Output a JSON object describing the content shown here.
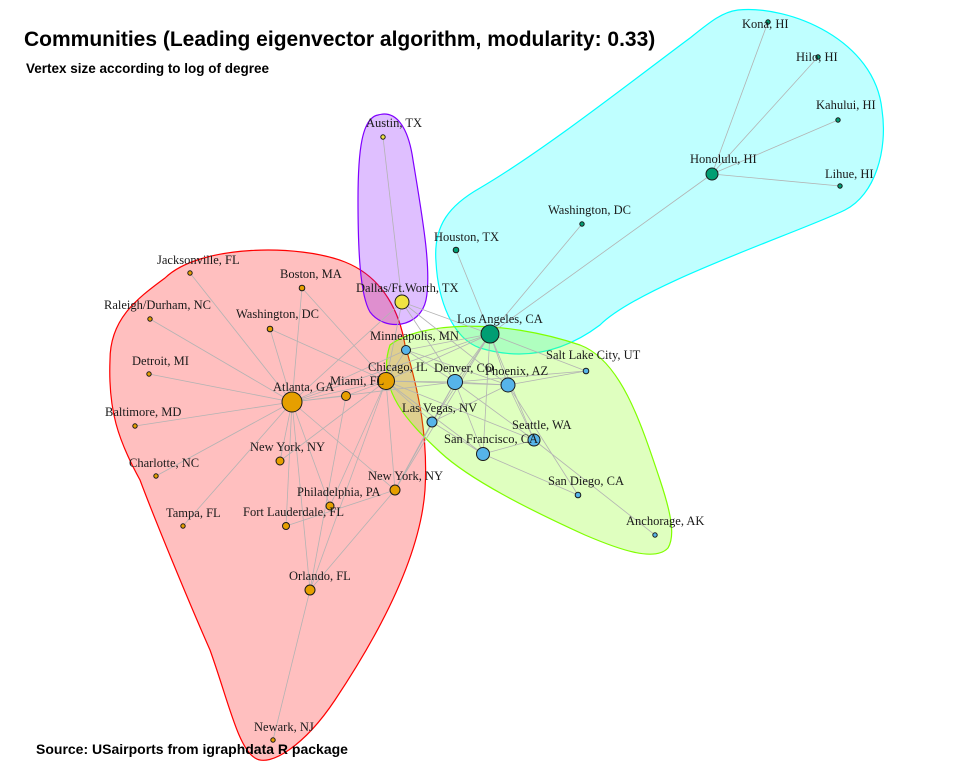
{
  "title": "Communities (Leading eigenvector algorithm, modularity: 0.33)",
  "subtitle": "Vertex size according to log of degree",
  "source": "Source: USairports from igraphdata R package",
  "colors": {
    "background": "#ffffff",
    "edge": "#b3b3b3",
    "node_stroke": "#1a1a1a"
  },
  "communities": [
    {
      "id": "red",
      "fill": "#ff0000",
      "fill_opacity": 0.25,
      "stroke": "#ff0000"
    },
    {
      "id": "purple",
      "fill": "#8000ff",
      "fill_opacity": 0.25,
      "stroke": "#8000ff"
    },
    {
      "id": "cyan",
      "fill": "#00ffff",
      "fill_opacity": 0.25,
      "stroke": "#00ffff"
    },
    {
      "id": "green",
      "fill": "#80ff00",
      "fill_opacity": 0.25,
      "stroke": "#80ff00"
    }
  ],
  "community_colors": {
    "red": "#e69f00",
    "purple": "#f0e442",
    "cyan": "#009e73",
    "green": "#56b4e9"
  },
  "nodes": [
    {
      "id": "kona",
      "label": "Kona, HI",
      "community": "cyan"
    },
    {
      "id": "hilo",
      "label": "Hilo, HI",
      "community": "cyan"
    },
    {
      "id": "kahului",
      "label": "Kahului, HI",
      "community": "cyan"
    },
    {
      "id": "honolulu",
      "label": "Honolulu, HI",
      "community": "cyan"
    },
    {
      "id": "lihue",
      "label": "Lihue, HI",
      "community": "cyan"
    },
    {
      "id": "washington_dc2",
      "label": "Washington, DC",
      "community": "cyan"
    },
    {
      "id": "houston",
      "label": "Houston, TX",
      "community": "cyan"
    },
    {
      "id": "los_angeles",
      "label": "Los Angeles, CA",
      "community": "cyan"
    },
    {
      "id": "austin",
      "label": "Austin, TX",
      "community": "purple"
    },
    {
      "id": "dallas",
      "label": "Dallas/Ft.Worth, TX",
      "community": "purple"
    },
    {
      "id": "jacksonville",
      "label": "Jacksonville, FL",
      "community": "red"
    },
    {
      "id": "boston",
      "label": "Boston, MA",
      "community": "red"
    },
    {
      "id": "raleigh",
      "label": "Raleigh/Durham, NC",
      "community": "red"
    },
    {
      "id": "washington_dc1",
      "label": "Washington, DC",
      "community": "red"
    },
    {
      "id": "detroit",
      "label": "Detroit, MI",
      "community": "red"
    },
    {
      "id": "atlanta",
      "label": "Atlanta, GA",
      "community": "red"
    },
    {
      "id": "miami",
      "label": "Miami, FL",
      "community": "red"
    },
    {
      "id": "chicago",
      "label": "Chicago, IL",
      "community": "red"
    },
    {
      "id": "baltimore",
      "label": "Baltimore, MD",
      "community": "red"
    },
    {
      "id": "charlotte",
      "label": "Charlotte, NC",
      "community": "red"
    },
    {
      "id": "new_york1",
      "label": "New York, NY",
      "community": "red"
    },
    {
      "id": "new_york2",
      "label": "New York, NY",
      "community": "red"
    },
    {
      "id": "philadelphia",
      "label": "Philadelphia, PA",
      "community": "red"
    },
    {
      "id": "tampa",
      "label": "Tampa, FL",
      "community": "red"
    },
    {
      "id": "fort_lauderdale",
      "label": "Fort Lauderdale, FL",
      "community": "red"
    },
    {
      "id": "orlando",
      "label": "Orlando, FL",
      "community": "red"
    },
    {
      "id": "newark",
      "label": "Newark, NJ",
      "community": "red"
    },
    {
      "id": "minneapolis",
      "label": "Minneapolis, MN",
      "community": "green"
    },
    {
      "id": "denver",
      "label": "Denver, CO",
      "community": "green"
    },
    {
      "id": "phoenix",
      "label": "Phoenix, AZ",
      "community": "green"
    },
    {
      "id": "salt_lake",
      "label": "Salt Lake City, UT",
      "community": "green"
    },
    {
      "id": "las_vegas",
      "label": "Las Vegas, NV",
      "community": "green"
    },
    {
      "id": "seattle",
      "label": "Seattle, WA",
      "community": "green"
    },
    {
      "id": "san_francisco",
      "label": "San Francisco, CA",
      "community": "green"
    },
    {
      "id": "san_diego",
      "label": "San Diego, CA",
      "community": "green"
    },
    {
      "id": "anchorage",
      "label": "Anchorage, AK",
      "community": "green"
    }
  ],
  "edges": [
    [
      "honolulu",
      "kona"
    ],
    [
      "honolulu",
      "hilo"
    ],
    [
      "honolulu",
      "kahului"
    ],
    [
      "honolulu",
      "lihue"
    ],
    [
      "honolulu",
      "los_angeles"
    ],
    [
      "washington_dc2",
      "los_angeles"
    ],
    [
      "houston",
      "los_angeles"
    ],
    [
      "los_angeles",
      "dallas"
    ],
    [
      "los_angeles",
      "chicago"
    ],
    [
      "los_angeles",
      "denver"
    ],
    [
      "los_angeles",
      "phoenix"
    ],
    [
      "los_angeles",
      "las_vegas"
    ],
    [
      "los_angeles",
      "salt_lake"
    ],
    [
      "los_angeles",
      "san_francisco"
    ],
    [
      "los_angeles",
      "seattle"
    ],
    [
      "los_angeles",
      "atlanta"
    ],
    [
      "los_angeles",
      "minneapolis"
    ],
    [
      "los_angeles",
      "new_york2"
    ],
    [
      "austin",
      "dallas"
    ],
    [
      "dallas",
      "atlanta"
    ],
    [
      "dallas",
      "chicago"
    ],
    [
      "dallas",
      "denver"
    ],
    [
      "dallas",
      "phoenix"
    ],
    [
      "atlanta",
      "jacksonville"
    ],
    [
      "atlanta",
      "boston"
    ],
    [
      "atlanta",
      "raleigh"
    ],
    [
      "atlanta",
      "washington_dc1"
    ],
    [
      "atlanta",
      "detroit"
    ],
    [
      "atlanta",
      "baltimore"
    ],
    [
      "atlanta",
      "charlotte"
    ],
    [
      "atlanta",
      "new_york1"
    ],
    [
      "atlanta",
      "tampa"
    ],
    [
      "atlanta",
      "fort_lauderdale"
    ],
    [
      "atlanta",
      "orlando"
    ],
    [
      "atlanta",
      "miami"
    ],
    [
      "atlanta",
      "chicago"
    ],
    [
      "atlanta",
      "philadelphia"
    ],
    [
      "atlanta",
      "new_york2"
    ],
    [
      "atlanta",
      "denver"
    ],
    [
      "atlanta",
      "minneapolis"
    ],
    [
      "boston",
      "chicago"
    ],
    [
      "washington_dc1",
      "chicago"
    ],
    [
      "miami",
      "chicago"
    ],
    [
      "new_york1",
      "chicago"
    ],
    [
      "new_york2",
      "chicago"
    ],
    [
      "philadelphia",
      "chicago"
    ],
    [
      "orlando",
      "chicago"
    ],
    [
      "orlando",
      "miami"
    ],
    [
      "orlando",
      "new_york2"
    ],
    [
      "newark",
      "orlando"
    ],
    [
      "fort_lauderdale",
      "new_york2"
    ],
    [
      "chicago",
      "denver"
    ],
    [
      "chicago",
      "phoenix"
    ],
    [
      "chicago",
      "las_vegas"
    ],
    [
      "chicago",
      "minneapolis"
    ],
    [
      "chicago",
      "san_francisco"
    ],
    [
      "chicago",
      "seattle"
    ],
    [
      "denver",
      "phoenix"
    ],
    [
      "denver",
      "salt_lake"
    ],
    [
      "denver",
      "las_vegas"
    ],
    [
      "denver",
      "seattle"
    ],
    [
      "denver",
      "san_francisco"
    ],
    [
      "denver",
      "minneapolis"
    ],
    [
      "phoenix",
      "salt_lake"
    ],
    [
      "phoenix",
      "san_diego"
    ],
    [
      "phoenix",
      "seattle"
    ],
    [
      "phoenix",
      "las_vegas"
    ],
    [
      "las_vegas",
      "san_francisco"
    ],
    [
      "seattle",
      "anchorage"
    ],
    [
      "seattle",
      "san_francisco"
    ],
    [
      "san_francisco",
      "san_diego"
    ],
    [
      "minneapolis",
      "phoenix"
    ],
    [
      "las_vegas",
      "new_york2"
    ],
    [
      "denver",
      "new_york2"
    ]
  ]
}
